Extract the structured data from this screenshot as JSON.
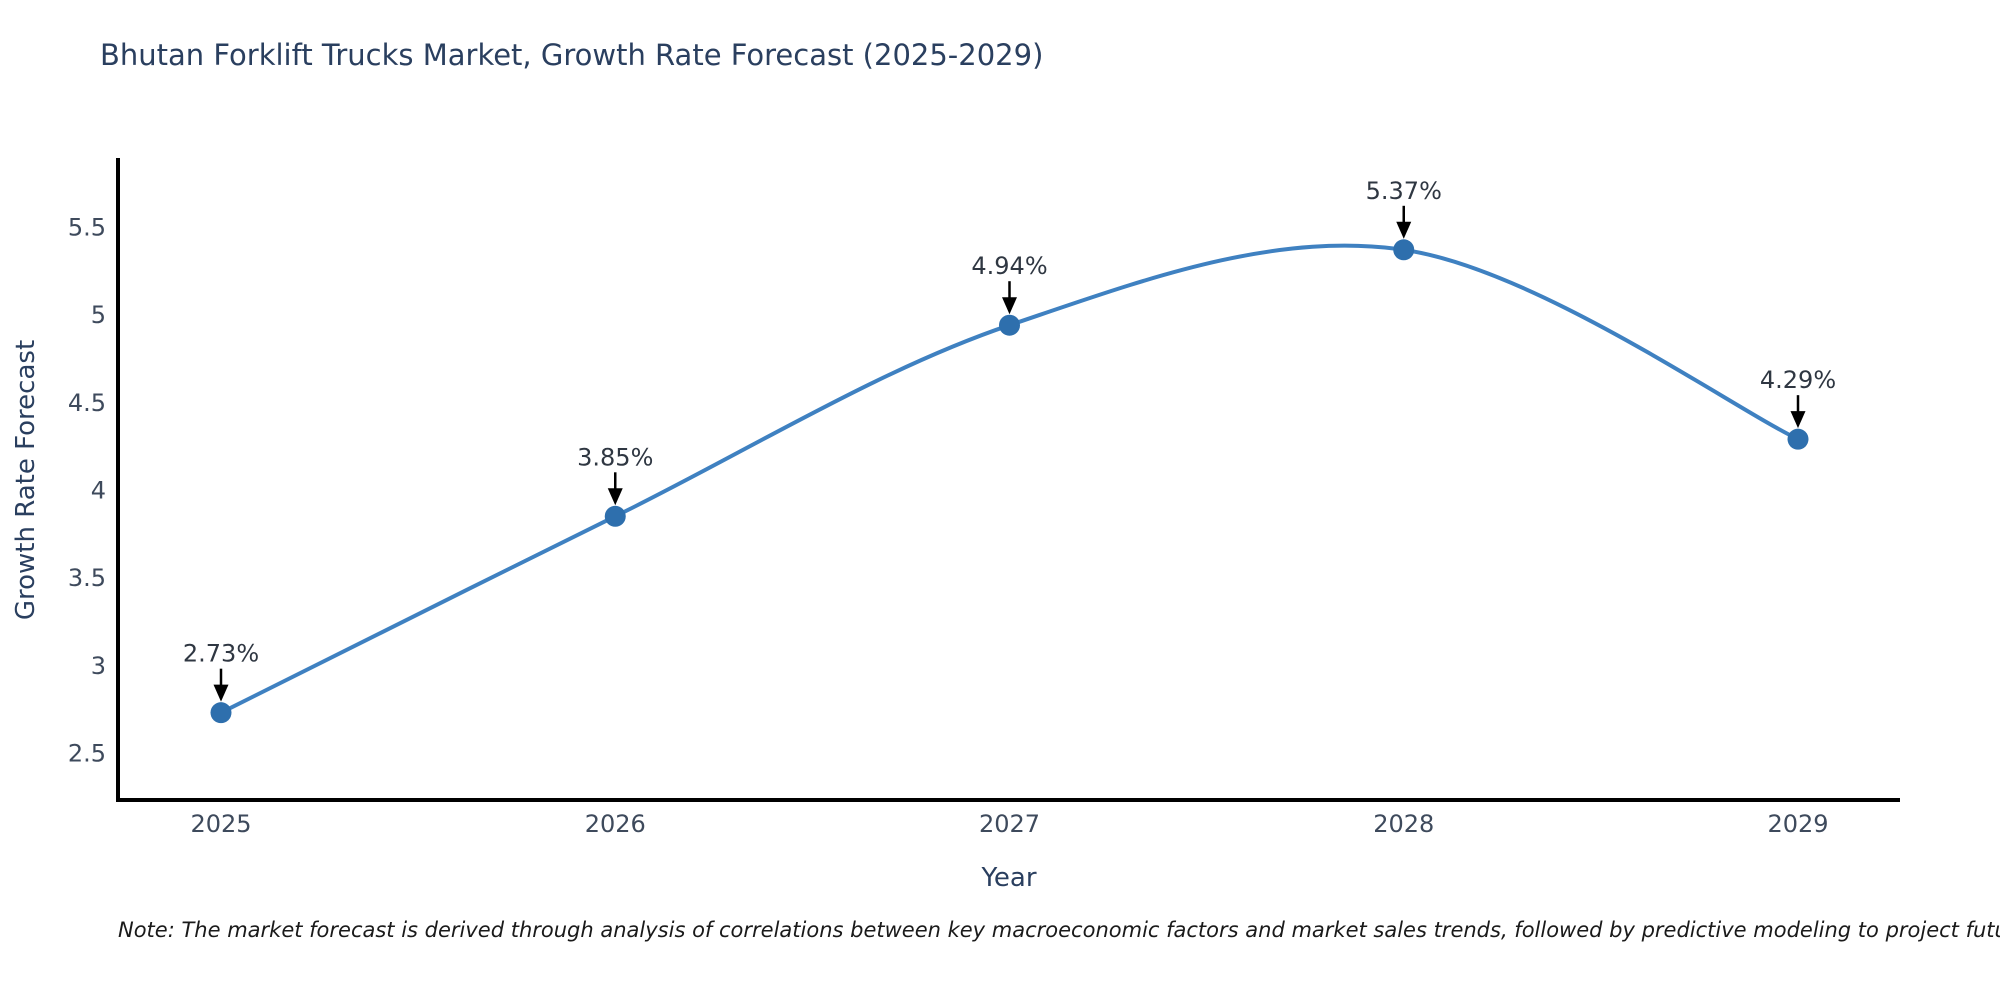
{
  "header": {
    "title": "Bhutan Forklift Trucks Market, Growth Rate Forecast (2025-2029)"
  },
  "footer": {
    "note": "Note: The market forecast is derived through analysis of correlations between key macroeconomic factors and market sales trends, followed by predictive modeling to project future sales"
  },
  "chart_data": {
    "type": "line",
    "line_shape": "spline",
    "title": "Bhutan Forklift Trucks Market, Growth Rate Forecast (2025-2029)",
    "xlabel": "Year",
    "ylabel": "Growth Rate Forecast",
    "x": [
      2025,
      2026,
      2027,
      2028,
      2029
    ],
    "categories": [
      "2025",
      "2026",
      "2027",
      "2028",
      "2029"
    ],
    "values": [
      2.73,
      3.85,
      4.94,
      5.37,
      4.29
    ],
    "point_labels": [
      "2.73%",
      "3.85%",
      "4.94%",
      "5.37%",
      "4.29%"
    ],
    "yticks": [
      2.5,
      3,
      3.5,
      4,
      4.5,
      5,
      5.5
    ],
    "ytick_labels": [
      "2.5",
      "3",
      "3.5",
      "4",
      "4.5",
      "5",
      "5.5"
    ],
    "xlim": [
      2024.74,
      2029.26
    ],
    "ylim": [
      2.23,
      5.9
    ],
    "grid": false,
    "legend": "none",
    "annotations_have_arrows": true,
    "colors": {
      "line": "#3f81c1",
      "marker": "#2e6fad",
      "axis_line": "#000000",
      "tick_text": "#3e4a5c",
      "title_text": "#2a3f5f",
      "annotation_text": "#2f3742",
      "annotation_arrow": "#000000",
      "note_text": "#1a1a1a",
      "background": "#ffffff"
    }
  }
}
